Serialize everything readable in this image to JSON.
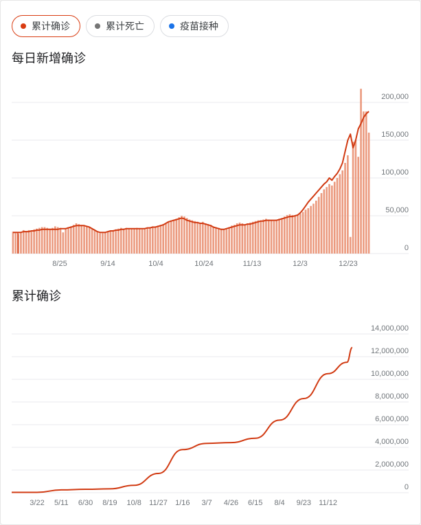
{
  "chips": [
    {
      "label": "累计确诊",
      "color": "#d93c12",
      "active": true
    },
    {
      "label": "累计死亡",
      "color": "#757575",
      "active": false
    },
    {
      "label": "疫苗接种",
      "color": "#1a73e8",
      "active": false
    }
  ],
  "colors": {
    "line": "#d13a12",
    "bar": "#eb9a7f",
    "grid": "#e8eaed"
  },
  "charts": {
    "daily": {
      "title": "每日新增确诊"
    },
    "cumulative": {
      "title": "累计确诊"
    }
  },
  "chart_data": [
    {
      "type": "bar",
      "title": "每日新增确诊",
      "x_tick_labels": [
        "8/25",
        "9/14",
        "10/4",
        "10/24",
        "11/13",
        "12/3",
        "12/23"
      ],
      "y_tick_labels": [
        "0",
        "50,000",
        "100,000",
        "150,000",
        "200,000"
      ],
      "ylim": [
        0,
        220000
      ],
      "grid": true,
      "series": [
        {
          "type": "bar",
          "values": [
            29000,
            27000,
            26000,
            28000,
            31000,
            30000,
            31000,
            29000,
            32000,
            33000,
            34000,
            35000,
            35000,
            34000,
            33000,
            34000,
            36000,
            35000,
            34000,
            28000,
            33000,
            35000,
            36000,
            38000,
            40000,
            39000,
            38000,
            37000,
            36000,
            35000,
            33000,
            31000,
            29000,
            27000,
            27000,
            28000,
            29000,
            30000,
            31000,
            32000,
            33000,
            34000,
            33000,
            34000,
            33000,
            33000,
            33000,
            34000,
            33000,
            32000,
            33000,
            34000,
            35000,
            36000,
            36000,
            37000,
            38000,
            39000,
            40000,
            42000,
            44000,
            45000,
            46000,
            48000,
            50000,
            49000,
            47000,
            45000,
            44000,
            43000,
            42000,
            41000,
            42000,
            40000,
            39000,
            38000,
            36000,
            35000,
            34000,
            33000,
            32000,
            33000,
            35000,
            37000,
            38000,
            40000,
            41000,
            40000,
            39000,
            40000,
            41000,
            42000,
            43000,
            44000,
            44000,
            45000,
            46000,
            45000,
            44000,
            43000,
            45000,
            46000,
            47000,
            49000,
            51000,
            52000,
            51000,
            50000,
            51000,
            53000,
            55000,
            58000,
            60000,
            63000,
            66000,
            70000,
            75000,
            80000,
            85000,
            88000,
            92000,
            90000,
            95000,
            100000,
            105000,
            110000,
            120000,
            130000,
            22000,
            148000,
            150000,
            128000,
            218000,
            188000,
            188000,
            160000
          ]
        },
        {
          "type": "line",
          "values": [
            28000,
            28000,
            28000,
            28000,
            29000,
            29000,
            29000,
            30000,
            30000,
            31000,
            31000,
            32000,
            32000,
            32000,
            32000,
            32000,
            32000,
            32000,
            33000,
            33000,
            33000,
            34000,
            35000,
            36000,
            37000,
            37000,
            37000,
            37000,
            36000,
            35000,
            33000,
            31000,
            29000,
            28000,
            28000,
            28000,
            29000,
            30000,
            30000,
            31000,
            31000,
            32000,
            32000,
            33000,
            33000,
            33000,
            33000,
            33000,
            33000,
            33000,
            33000,
            34000,
            34000,
            35000,
            35000,
            36000,
            37000,
            38000,
            40000,
            42000,
            43000,
            44000,
            45000,
            46000,
            47000,
            46000,
            44000,
            43000,
            42000,
            41000,
            41000,
            40000,
            40000,
            39000,
            38000,
            37000,
            35000,
            34000,
            33000,
            32000,
            32000,
            33000,
            34000,
            35000,
            36000,
            37000,
            38000,
            38000,
            38000,
            39000,
            39000,
            40000,
            41000,
            42000,
            43000,
            43000,
            44000,
            44000,
            44000,
            44000,
            44000,
            45000,
            46000,
            47000,
            48000,
            49000,
            49000,
            50000,
            51000,
            54000,
            58000,
            63000,
            68000,
            72000,
            76000,
            80000,
            84000,
            88000,
            92000,
            95000,
            100000,
            97000,
            102000,
            106000,
            112000,
            120000,
            135000,
            150000,
            158000,
            140000,
            150000,
            165000,
            172000,
            180000,
            185000,
            188000
          ]
        }
      ]
    },
    {
      "type": "line",
      "title": "累计确诊",
      "x_tick_labels": [
        "3/22",
        "5/11",
        "6/30",
        "8/19",
        "10/8",
        "11/27",
        "1/16",
        "3/7",
        "4/26",
        "6/15",
        "8/4",
        "9/23",
        "11/12"
      ],
      "y_tick_labels": [
        "0",
        "2,000,000",
        "4,000,000",
        "6,000,000",
        "8,000,000",
        "10,000,000",
        "12,000,000",
        "14,000,000"
      ],
      "ylim": [
        0,
        14000000
      ],
      "grid": true,
      "x": [
        "3/22",
        "5/11",
        "6/30",
        "8/19",
        "10/8",
        "11/27",
        "1/16",
        "3/7",
        "4/26",
        "6/15",
        "8/4",
        "9/23",
        "11/12"
      ],
      "values": [
        30000,
        250000,
        300000,
        340000,
        650000,
        1700000,
        3800000,
        4350000,
        4420000,
        4800000,
        6400000,
        8300000,
        10500000
      ]
    }
  ]
}
